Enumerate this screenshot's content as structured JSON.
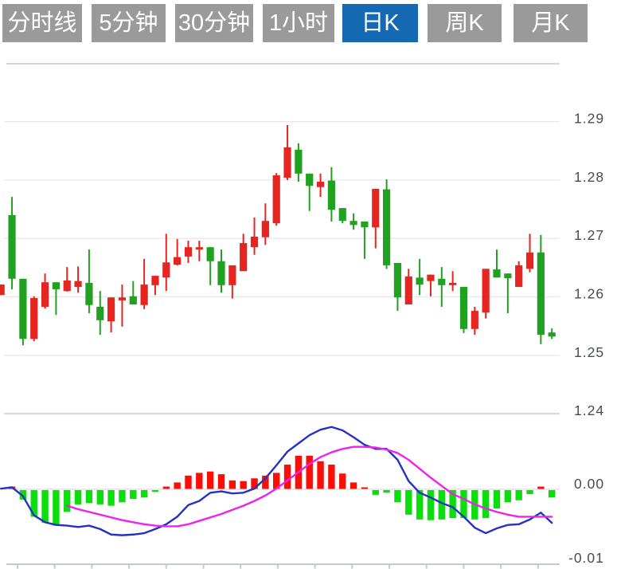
{
  "toolbar": {
    "buttons": [
      {
        "id": "timeline",
        "label": "分时线"
      },
      {
        "id": "min5",
        "label": "5分钟"
      },
      {
        "id": "min30",
        "label": "30分钟"
      },
      {
        "id": "hour1",
        "label": "1小时"
      },
      {
        "id": "daily-k",
        "label": "日K"
      },
      {
        "id": "weekly-k",
        "label": "周K"
      },
      {
        "id": "monthly-k",
        "label": "月K"
      }
    ],
    "active_index": 4,
    "colors": {
      "default_bg": "#9a9a9a",
      "active_bg": "#1569b3",
      "text": "#ffffff"
    }
  },
  "chart_data": {
    "type": "candlestick",
    "title": "",
    "xlabel": "",
    "ylabel": "",
    "legend": [],
    "grid": true,
    "price_axis": {
      "side": "right",
      "labels": [
        "1.29",
        "1.28",
        "1.27",
        "1.26",
        "1.25",
        "1.24"
      ],
      "values": [
        1.29,
        1.28,
        1.27,
        1.26,
        1.25,
        1.24
      ]
    },
    "macd_axis": {
      "side": "right",
      "labels": [
        "0.00",
        "-0.01"
      ],
      "values": [
        0,
        -0.01
      ]
    },
    "candles": [
      [
        1.2603,
        1.2621,
        1.2603,
        1.2621
      ],
      [
        1.274,
        1.2771,
        1.2613,
        1.2631
      ],
      [
        1.2631,
        1.2631,
        1.2517,
        1.2528
      ],
      [
        1.2528,
        1.2601,
        1.2524,
        1.2598
      ],
      [
        1.2583,
        1.264,
        1.258,
        1.2625
      ],
      [
        1.2625,
        1.2625,
        1.2569,
        1.2613
      ],
      [
        1.261,
        1.2651,
        1.2609,
        1.2628
      ],
      [
        1.2617,
        1.2652,
        1.2607,
        1.2627
      ],
      [
        1.2624,
        1.2681,
        1.2572,
        1.2586
      ],
      [
        1.2583,
        1.261,
        1.2535,
        1.256
      ],
      [
        1.2558,
        1.2599,
        1.2539,
        1.2599
      ],
      [
        1.2594,
        1.2621,
        1.2549,
        1.2599
      ],
      [
        1.2601,
        1.2627,
        1.2587,
        1.2587
      ],
      [
        1.2586,
        1.2665,
        1.2579,
        1.2621
      ],
      [
        1.262,
        1.2636,
        1.2603,
        1.2636
      ],
      [
        1.2633,
        1.2708,
        1.261,
        1.2659
      ],
      [
        1.2655,
        1.2699,
        1.2654,
        1.2668
      ],
      [
        1.2669,
        1.2696,
        1.2658,
        1.2685
      ],
      [
        1.2681,
        1.2696,
        1.2661,
        1.2685
      ],
      [
        1.2685,
        1.2685,
        1.262,
        1.2661
      ],
      [
        1.2661,
        1.2681,
        1.2607,
        1.262
      ],
      [
        1.262,
        1.2654,
        1.2597,
        1.2654
      ],
      [
        1.2644,
        1.2708,
        1.2644,
        1.2692
      ],
      [
        1.2685,
        1.2736,
        1.2672,
        1.2703
      ],
      [
        1.2702,
        1.276,
        1.2689,
        1.273
      ],
      [
        1.2726,
        1.2812,
        1.2722,
        1.2808
      ],
      [
        1.2804,
        1.2894,
        1.28,
        1.2856
      ],
      [
        1.2852,
        1.2863,
        1.2797,
        1.2811
      ],
      [
        1.2811,
        1.2811,
        1.2747,
        1.279
      ],
      [
        1.2788,
        1.2811,
        1.2771,
        1.2797
      ],
      [
        1.2799,
        1.2822,
        1.2729,
        1.2749
      ],
      [
        1.2752,
        1.2752,
        1.2726,
        1.273
      ],
      [
        1.273,
        1.2743,
        1.2715,
        1.2723
      ],
      [
        1.2729,
        1.2729,
        1.2665,
        1.2719
      ],
      [
        1.2719,
        1.2785,
        1.2683,
        1.2785
      ],
      [
        1.2784,
        1.2801,
        1.2648,
        1.2654
      ],
      [
        1.2658,
        1.2658,
        1.2576,
        1.2599
      ],
      [
        1.2587,
        1.2648,
        1.2587,
        1.2635
      ],
      [
        1.2633,
        1.2665,
        1.2603,
        1.2621
      ],
      [
        1.2627,
        1.2638,
        1.2601,
        1.2638
      ],
      [
        1.2631,
        1.2651,
        1.2583,
        1.262
      ],
      [
        1.262,
        1.2644,
        1.261,
        1.2624
      ],
      [
        1.2617,
        1.2617,
        1.2538,
        1.2545
      ],
      [
        1.2545,
        1.2583,
        1.2535,
        1.2576
      ],
      [
        1.2573,
        1.2648,
        1.2563,
        1.2648
      ],
      [
        1.2647,
        1.2681,
        1.2633,
        1.2633
      ],
      [
        1.264,
        1.264,
        1.2572,
        1.2632
      ],
      [
        1.2617,
        1.2661,
        1.2617,
        1.2654
      ],
      [
        1.2648,
        1.2708,
        1.2642,
        1.2676
      ],
      [
        1.2676,
        1.2706,
        1.2519,
        1.2535
      ],
      [
        1.2539,
        1.2546,
        1.2528,
        1.2532
      ]
    ],
    "macd": {
      "histogram": [
        null,
        0.0004,
        -0.0015,
        -0.004,
        -0.0049,
        -0.0053,
        -0.0033,
        -0.0022,
        -0.002,
        -0.0022,
        -0.0024,
        -0.0019,
        -0.0014,
        -0.0012,
        -0.0003,
        0.0004,
        0.001,
        0.002,
        0.0024,
        0.0026,
        0.0022,
        0.0013,
        0.0012,
        0.0016,
        0.002,
        0.0024,
        0.0036,
        0.0049,
        0.0049,
        0.0041,
        0.0036,
        0.0023,
        0.001,
        0.0002,
        -0.0008,
        -0.0005,
        -0.0019,
        -0.0037,
        -0.0044,
        -0.0045,
        -0.0044,
        -0.0042,
        -0.0042,
        -0.0044,
        -0.0042,
        -0.0028,
        -0.0019,
        -0.0016,
        -0.0007,
        0.0004,
        -0.0012
      ],
      "dif": [
        0.0001,
        0.0003,
        -0.001,
        -0.0038,
        -0.0048,
        -0.0052,
        -0.0053,
        -0.0055,
        -0.0053,
        -0.0058,
        -0.0066,
        -0.0067,
        -0.0066,
        -0.0064,
        -0.0058,
        -0.0051,
        -0.004,
        -0.0023,
        -0.0017,
        -0.0005,
        -0.0003,
        -0.0006,
        -0.0005,
        0.0001,
        0.0016,
        0.0035,
        0.0055,
        0.0067,
        0.0079,
        0.0087,
        0.0091,
        0.0086,
        0.0076,
        0.0065,
        0.0059,
        0.0059,
        0.0043,
        0.0012,
        -0.0005,
        -0.0012,
        -0.002,
        -0.0026,
        -0.004,
        -0.0056,
        -0.0064,
        -0.0057,
        -0.0052,
        -0.0051,
        -0.0044,
        -0.0034,
        -0.0049
      ],
      "dea": [
        null,
        null,
        null,
        null,
        null,
        null,
        -0.0024,
        -0.0029,
        -0.0033,
        -0.0037,
        -0.0041,
        -0.0045,
        -0.0048,
        -0.0051,
        -0.0053,
        -0.0054,
        -0.0054,
        -0.0051,
        -0.0046,
        -0.0041,
        -0.0036,
        -0.003,
        -0.0024,
        -0.0017,
        -0.0009,
        0.0001,
        0.0013,
        0.0025,
        0.0037,
        0.0047,
        0.0054,
        0.0059,
        0.0062,
        0.0062,
        0.0061,
        0.0058,
        0.0053,
        0.0043,
        0.003,
        0.0017,
        0.0005,
        -0.0007,
        -0.0014,
        -0.0022,
        -0.0028,
        -0.0033,
        -0.0037,
        -0.004,
        -0.004,
        -0.004,
        -0.004
      ]
    },
    "colors": {
      "candle_up": "#e62420",
      "candle_down": "#21a121",
      "macd_up": "#fa0e06",
      "macd_down": "#0cdd0c",
      "dif_line": "#2431c5",
      "dea_line": "#ee22ee",
      "grid": "#e8e8e8",
      "panel_border": "#d6d6d6",
      "bottom_axis": "#c4c9d2",
      "zero_line": "#e2e2e2",
      "axis_text": "#474b55"
    }
  }
}
